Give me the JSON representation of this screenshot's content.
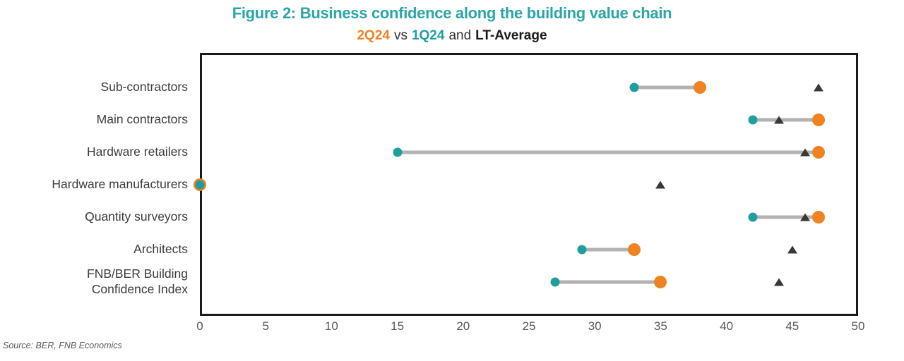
{
  "figure": {
    "title": "Figure 2: Business confidence along the building value chain",
    "subtitle": {
      "q2": "2Q24",
      "vs": "vs",
      "q1": "1Q24",
      "and": "and",
      "lt": "LT-Average"
    },
    "source": "Source: BER, FNB Economics"
  },
  "colors": {
    "title_teal": "#2AA6A9",
    "teal": "#1F9E9E",
    "orange": "#F08222",
    "lt_marker": "#383838",
    "connector": "#B2B2B2",
    "border": "#1A1A1A",
    "axis_text": "#595959",
    "category_text": "#3C3C3C",
    "text_dark": "#333333"
  },
  "chart_data": {
    "type": "dumbbell",
    "title": "Figure 2: Business confidence along the building value chain",
    "subtitle": "2Q24 vs 1Q24 and LT-Average",
    "categories": [
      "Sub-contractors",
      "Main contractors",
      "Hardware retailers",
      "Hardware manufacturers",
      "Quantity surveyors",
      "Architects",
      "FNB/BER Building\nConfidence Index"
    ],
    "series": [
      {
        "name": "2Q24",
        "marker": "circle-large",
        "color_key": "orange",
        "values": [
          38,
          47,
          47,
          0,
          47,
          33,
          35
        ]
      },
      {
        "name": "1Q24",
        "marker": "circle-small",
        "color_key": "teal",
        "values": [
          33,
          42,
          15,
          0,
          42,
          29,
          27
        ]
      },
      {
        "name": "LT-Average",
        "marker": "triangle",
        "color_key": "lt_marker",
        "values": [
          47,
          44,
          46,
          35,
          46,
          45,
          44
        ]
      }
    ],
    "x_axis": {
      "min": 0,
      "max": 50,
      "tick_step": 5,
      "ticks": [
        0,
        5,
        10,
        15,
        20,
        25,
        30,
        35,
        40,
        45,
        50
      ]
    },
    "grid": false,
    "legend_position": "subtitle",
    "connector_between": [
      "1Q24",
      "2Q24"
    ]
  }
}
